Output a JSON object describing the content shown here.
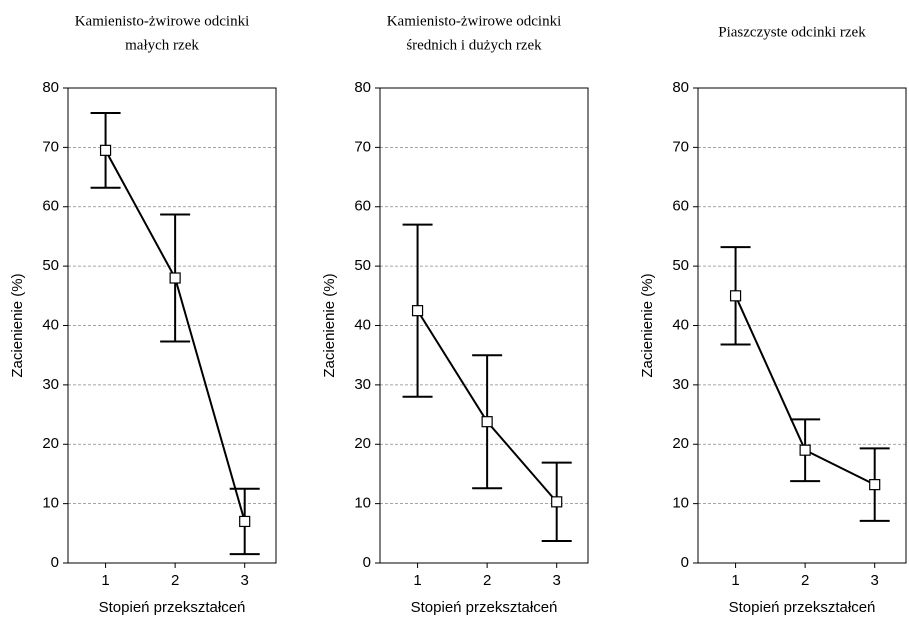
{
  "chart_data": [
    {
      "type": "line",
      "title": [
        "Kamienisto-żwirowe odcinki",
        "małych rzek"
      ],
      "xlabel": "Stopień przekształceń",
      "ylabel": "Zacienienie (%)",
      "x": [
        1,
        2,
        3
      ],
      "values": [
        69.5,
        48,
        7
      ],
      "errors": [
        6.3,
        10.7,
        5.5
      ],
      "color": "#000000",
      "xlim": [
        0.46,
        3.45
      ],
      "xticks": [
        1,
        2,
        3
      ],
      "ylim": [
        0,
        80
      ],
      "yticks": [
        0,
        10,
        20,
        30,
        40,
        50,
        60,
        70,
        80
      ],
      "grid": true
    },
    {
      "type": "line",
      "title": [
        "Kamienisto-żwirowe odcinki",
        "średnich i dużych rzek"
      ],
      "xlabel": "Stopień przekształceń",
      "ylabel": "Zacienienie (%)",
      "x": [
        1,
        2,
        3
      ],
      "values": [
        42.5,
        23.8,
        10.3
      ],
      "errors": [
        14.5,
        11.2,
        6.6
      ],
      "color": "#000000",
      "xlim": [
        0.46,
        3.45
      ],
      "xticks": [
        1,
        2,
        3
      ],
      "ylim": [
        0,
        80
      ],
      "yticks": [
        0,
        10,
        20,
        30,
        40,
        50,
        60,
        70,
        80
      ],
      "grid": true
    },
    {
      "type": "line",
      "title": [
        "Piaszczyste odcinki rzek"
      ],
      "xlabel": "Stopień przekształceń",
      "ylabel": "Zacienienie (%)",
      "x": [
        1,
        2,
        3
      ],
      "values": [
        45,
        19,
        13.2
      ],
      "errors": [
        8.2,
        5.2,
        6.1
      ],
      "color": "#000000",
      "xlim": [
        0.46,
        3.45
      ],
      "xticks": [
        1,
        2,
        3
      ],
      "ylim": [
        0,
        80
      ],
      "yticks": [
        0,
        10,
        20,
        30,
        40,
        50,
        60,
        70,
        80
      ],
      "grid": true
    }
  ]
}
